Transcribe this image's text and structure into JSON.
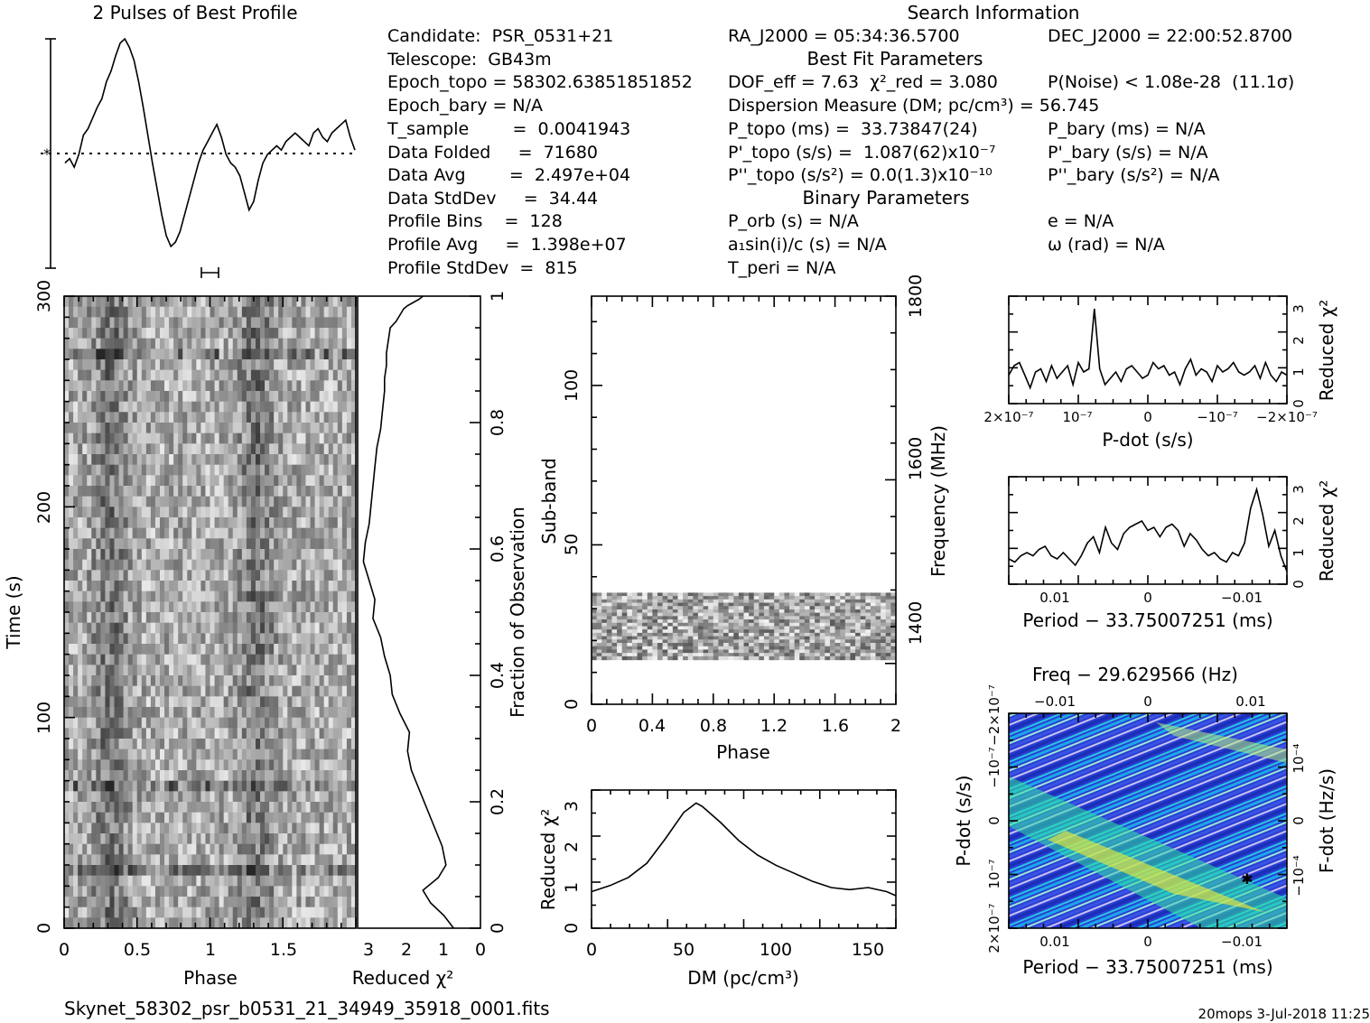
{
  "page": {
    "title_left": "2 Pulses of Best Profile",
    "title_right": "Search Information",
    "footer_file": "Skynet_58302_psr_b0531_21_34949_35918_0001.fits",
    "footer_meta": "20mops   3-Jul-2018 11:25"
  },
  "info": {
    "col1": [
      "Candidate:  PSR_0531+21",
      "Telescope:  GB43m",
      "Epoch_topo = 58302.63851851852",
      "Epoch_bary = N/A",
      "T_sample        =  0.0041943",
      "Data Folded     =  71680",
      "Data Avg        =  2.497e+04",
      "Data StdDev     =  34.44",
      "Profile Bins    =  128",
      "Profile Avg     =  1.398e+07",
      "Profile StdDev  =  815"
    ],
    "col2": [
      "RA_J2000 = 05:34:36.5700",
      "DOF_eff = 7.63  χ²_red = 3.080",
      "Dispersion Measure (DM; pc/cm³) = 56.745",
      "P_topo (ms) =  33.73847(24)",
      "P'_topo (s/s) =  1.087(62)x10⁻⁷",
      "P''_topo (s/s²) = 0.0(1.3)x10⁻¹⁰",
      "P_orb (s) = N/A",
      "a₁sin(i)/c (s) = N/A",
      "T_peri = N/A"
    ],
    "col3": [
      "DEC_J2000 = 22:00:52.8700",
      "P(Noise) < 1.08e-28  (11.1σ)",
      "P_bary (ms) = N/A",
      "P'_bary (s/s) = N/A",
      "P''_bary (s/s²) = N/A",
      "e = N/A",
      "ω (rad) = N/A"
    ],
    "headers": [
      "Best Fit Parameters",
      "Binary Parameters"
    ]
  },
  "chart_data": [
    {
      "name": "profile",
      "type": "line",
      "title": "2 Pulses of Best Profile",
      "xlim": [
        0,
        2
      ],
      "y": [
        0.42,
        0.44,
        0.4,
        0.46,
        0.55,
        0.58,
        0.63,
        0.68,
        0.72,
        0.8,
        0.85,
        0.92,
        0.98,
        1.0,
        0.96,
        0.9,
        0.8,
        0.68,
        0.55,
        0.42,
        0.3,
        0.18,
        0.08,
        0.03,
        0.05,
        0.1,
        0.18,
        0.26,
        0.34,
        0.42,
        0.48,
        0.52,
        0.56,
        0.6,
        0.54,
        0.46,
        0.42,
        0.4,
        0.36,
        0.28,
        0.2,
        0.24,
        0.34,
        0.42,
        0.46,
        0.48,
        0.5,
        0.48,
        0.52,
        0.54,
        0.56,
        0.54,
        0.52,
        0.5,
        0.56,
        0.58,
        0.54,
        0.52,
        0.56,
        0.58,
        0.6,
        0.62,
        0.54,
        0.48
      ]
    },
    {
      "name": "time-vs-phase",
      "type": "heatmap",
      "xlabel": "Phase",
      "ylabel": "Time (s)",
      "xlim": [
        0,
        2
      ],
      "ylim": [
        0,
        300
      ],
      "xticks": [
        "0",
        "0.5",
        "1",
        "1.5"
      ],
      "yticks": [
        "0",
        "100",
        "200",
        "300"
      ]
    },
    {
      "name": "chi-vs-fraction",
      "type": "line",
      "xlabel": "Reduced χ²",
      "ylabel": "Fraction of Observation",
      "xlim": [
        3.2,
        0
      ],
      "ylim": [
        0,
        1
      ],
      "xticks": [
        "3",
        "2",
        "1",
        "0"
      ],
      "yticks": [
        "0",
        "0.2",
        "0.4",
        "0.6",
        "0.8",
        "1"
      ],
      "x": [
        0.7,
        0.95,
        1.3,
        1.5,
        1.1,
        0.9,
        1.0,
        1.2,
        1.4,
        1.6,
        1.8,
        1.9,
        1.85,
        2.1,
        2.3,
        2.35,
        2.5,
        2.6,
        2.8,
        2.75,
        2.9,
        3.05,
        3.0,
        2.9,
        2.85,
        2.8,
        2.75,
        2.7,
        2.6,
        2.55,
        2.5,
        2.5,
        2.45,
        2.45,
        2.4,
        2.35,
        2.2,
        2.1,
        2.0,
        1.9,
        1.75,
        1.6,
        1.5
      ],
      "y": [
        0,
        0.02,
        0.04,
        0.06,
        0.08,
        0.1,
        0.13,
        0.16,
        0.19,
        0.22,
        0.25,
        0.28,
        0.31,
        0.34,
        0.37,
        0.4,
        0.43,
        0.46,
        0.49,
        0.52,
        0.55,
        0.58,
        0.61,
        0.64,
        0.67,
        0.7,
        0.73,
        0.76,
        0.79,
        0.82,
        0.85,
        0.87,
        0.89,
        0.91,
        0.93,
        0.95,
        0.96,
        0.97,
        0.98,
        0.985,
        0.99,
        0.995,
        1.0
      ]
    },
    {
      "name": "subband-vs-phase",
      "type": "heatmap",
      "xlabel": "Phase",
      "ylabel": "Sub-band",
      "ylabel_right": "Frequency (MHz)",
      "xlim": [
        0,
        2
      ],
      "ylim": [
        0,
        128
      ],
      "xticks": [
        "0",
        "0.4",
        "0.8",
        "1.2",
        "1.6",
        "2"
      ],
      "yticks": [
        "0",
        "50",
        "100"
      ],
      "yticks_right": [
        "1400",
        "1600",
        "1800"
      ],
      "data_band": [
        14,
        35
      ]
    },
    {
      "name": "dm-curve",
      "type": "line",
      "xlabel": "DM (pc/cm³)",
      "ylabel": "Reduced χ²",
      "xlim": [
        0,
        165
      ],
      "ylim": [
        0,
        3.4
      ],
      "xticks": [
        "0",
        "50",
        "100",
        "150"
      ],
      "yticks": [
        "0",
        "1",
        "2",
        "3"
      ],
      "x": [
        0,
        10,
        20,
        30,
        40,
        50,
        56.7,
        60,
        70,
        80,
        90,
        100,
        110,
        120,
        130,
        140,
        150,
        160,
        165
      ],
      "y": [
        0.9,
        1.05,
        1.25,
        1.6,
        2.2,
        2.85,
        3.08,
        3.0,
        2.6,
        2.15,
        1.8,
        1.55,
        1.35,
        1.15,
        1.0,
        0.95,
        1.0,
        0.9,
        0.8
      ]
    },
    {
      "name": "pdot-curve",
      "type": "line",
      "xlabel": "P-dot (s/s)",
      "ylabel": "Reduced χ²",
      "xlim": [
        2e-07,
        -2e-07
      ],
      "ylim": [
        0,
        3.4
      ],
      "xticks": [
        "2×10⁻⁷",
        "10⁻⁷",
        "0",
        "−10⁻⁷",
        "−2×10⁻⁷"
      ],
      "yticks": [
        "0",
        "1",
        "2",
        "3"
      ],
      "y": [
        0.9,
        1.2,
        1.3,
        0.9,
        0.5,
        1.0,
        1.1,
        0.7,
        1.2,
        0.8,
        1.0,
        1.2,
        0.6,
        1.3,
        1.0,
        1.1,
        3.0,
        1.1,
        0.6,
        0.8,
        1.0,
        0.7,
        1.1,
        1.2,
        1.0,
        0.8,
        0.9,
        1.3,
        1.1,
        1.2,
        0.9,
        1.0,
        0.6,
        1.1,
        1.4,
        0.9,
        1.1,
        1.0,
        0.7,
        1.2,
        1.0,
        1.1,
        1.3,
        1.0,
        0.9,
        1.0,
        1.2,
        0.8,
        1.3,
        0.9,
        0.7,
        1.0,
        0.9
      ]
    },
    {
      "name": "period-curve",
      "type": "line",
      "xlabel": "Period − 33.75007251 (ms)",
      "ylabel": "Reduced χ²",
      "xlim": [
        0.017,
        -0.017
      ],
      "ylim": [
        0,
        3.4
      ],
      "xticks": [
        "0.01",
        "0",
        "−0.01"
      ],
      "yticks": [
        "0",
        "1",
        "2",
        "3"
      ],
      "y": [
        0.8,
        0.7,
        0.9,
        1.0,
        0.9,
        1.1,
        1.2,
        0.9,
        0.8,
        1.0,
        0.8,
        0.6,
        0.9,
        1.3,
        1.5,
        1.0,
        1.8,
        1.3,
        1.1,
        1.6,
        1.8,
        1.9,
        2.0,
        1.7,
        1.8,
        1.5,
        1.8,
        1.9,
        1.7,
        1.2,
        1.6,
        1.4,
        1.1,
        0.9,
        1.0,
        0.8,
        0.7,
        1.0,
        0.9,
        1.3,
        2.4,
        3.0,
        2.2,
        1.2,
        1.7,
        0.9,
        0.4
      ]
    },
    {
      "name": "pdot-period-plane",
      "type": "heatmap",
      "title": "Freq − 29.629566 (Hz)",
      "xlabel": "Period − 33.75007251 (ms)",
      "ylabel": "P-dot (s/s)",
      "ylabel_right": "F-dot (Hz/s)",
      "xticks_bottom": [
        "0.01",
        "0",
        "−0.01"
      ],
      "xticks_top": [
        "−0.01",
        "0",
        "0.01"
      ],
      "yticks_left": [
        "2×10⁻⁷",
        "10⁻⁷",
        "0",
        "−10⁻⁷",
        "−2×10⁻⁷"
      ],
      "yticks_right": [
        "−10⁻⁴",
        "0",
        "10⁻⁴"
      ]
    }
  ]
}
